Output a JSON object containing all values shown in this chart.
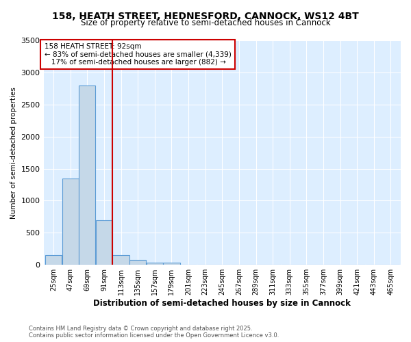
{
  "title": "158, HEATH STREET, HEDNESFORD, CANNOCK, WS12 4BT",
  "subtitle": "Size of property relative to semi-detached houses in Cannock",
  "xlabel": "Distribution of semi-detached houses by size in Cannock",
  "ylabel": "Number of semi-detached properties",
  "footer": "Contains HM Land Registry data © Crown copyright and database right 2025.\nContains public sector information licensed under the Open Government Licence v3.0.",
  "bin_labels": [
    "25sqm",
    "47sqm",
    "69sqm",
    "91sqm",
    "113sqm",
    "135sqm",
    "157sqm",
    "179sqm",
    "201sqm",
    "223sqm",
    "245sqm",
    "267sqm",
    "289sqm",
    "311sqm",
    "333sqm",
    "355sqm",
    "377sqm",
    "399sqm",
    "421sqm",
    "443sqm",
    "465sqm"
  ],
  "bin_width": 22,
  "bar_values": [
    150,
    1350,
    2800,
    700,
    150,
    80,
    30,
    30,
    5,
    0,
    0,
    0,
    0,
    0,
    0,
    0,
    0,
    0,
    0,
    0,
    0
  ],
  "bar_color": "#c5d8e8",
  "bar_edge_color": "#5b9bd5",
  "red_line_bin_index": 3,
  "red_line_color": "#cc0000",
  "annotation_text": "158 HEATH STREET: 92sqm\n← 83% of semi-detached houses are smaller (4,339)\n   17% of semi-detached houses are larger (882) →",
  "annotation_box_color": "#cc0000",
  "ylim": [
    0,
    3500
  ],
  "yticks": [
    0,
    500,
    1000,
    1500,
    2000,
    2500,
    3000,
    3500
  ],
  "bg_color": "#ddeeff",
  "plot_bg_color": "#ddeeff",
  "fig_bg_color": "#ffffff",
  "grid_color": "#ffffff"
}
